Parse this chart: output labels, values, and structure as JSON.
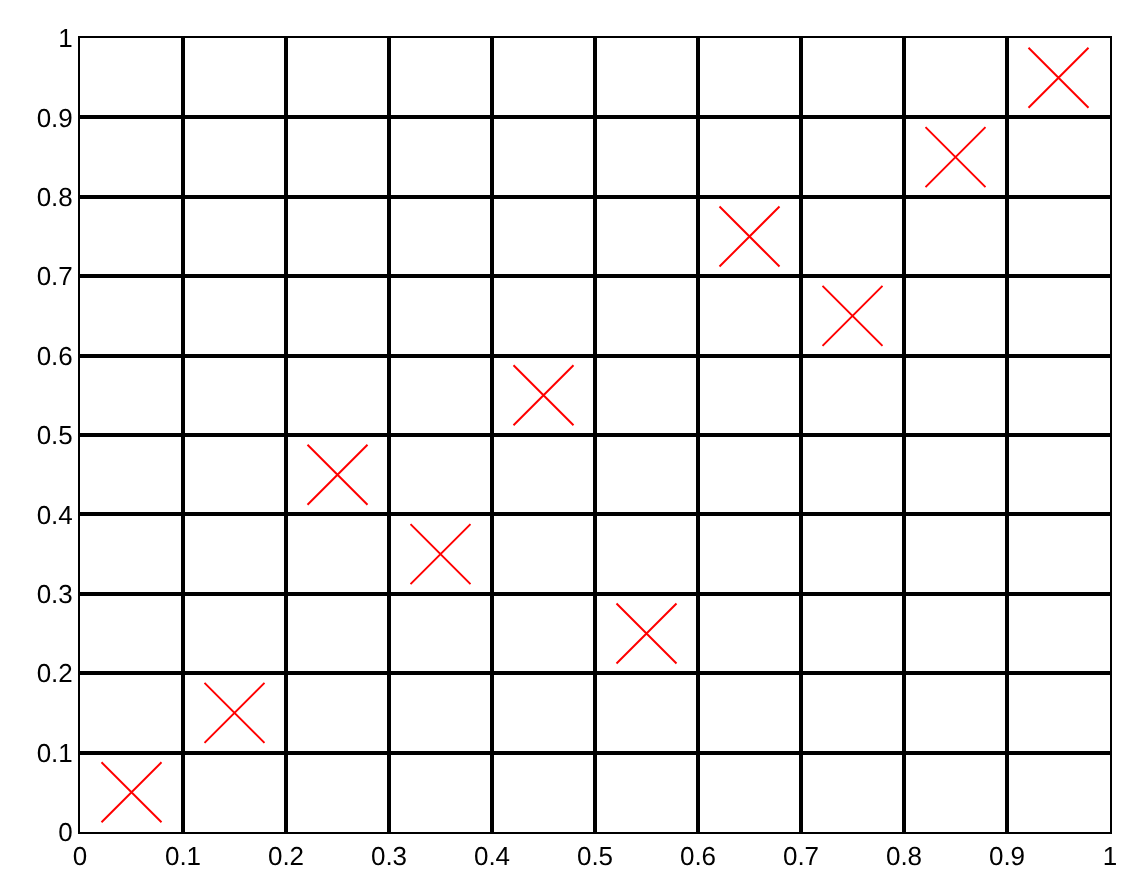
{
  "chart_data": {
    "type": "scatter",
    "x": [
      0.05,
      0.15,
      0.25,
      0.35,
      0.45,
      0.55,
      0.65,
      0.75,
      0.85,
      0.95
    ],
    "series": [
      {
        "color": "#ff0000",
        "values": [
          0.05,
          0.15,
          0.45,
          0.35,
          0.55,
          0.25,
          0.75,
          0.65,
          0.85,
          0.95
        ]
      }
    ],
    "xlim": [
      0,
      1
    ],
    "ylim": [
      0,
      1
    ],
    "xticks": [
      0,
      0.1,
      0.2,
      0.3,
      0.4,
      0.5,
      0.6,
      0.7,
      0.8,
      0.9,
      1
    ],
    "yticks": [
      0,
      0.1,
      0.2,
      0.3,
      0.4,
      0.5,
      0.6,
      0.7,
      0.8,
      0.9,
      1
    ],
    "grid": true,
    "legend": false,
    "marker": "cross"
  }
}
